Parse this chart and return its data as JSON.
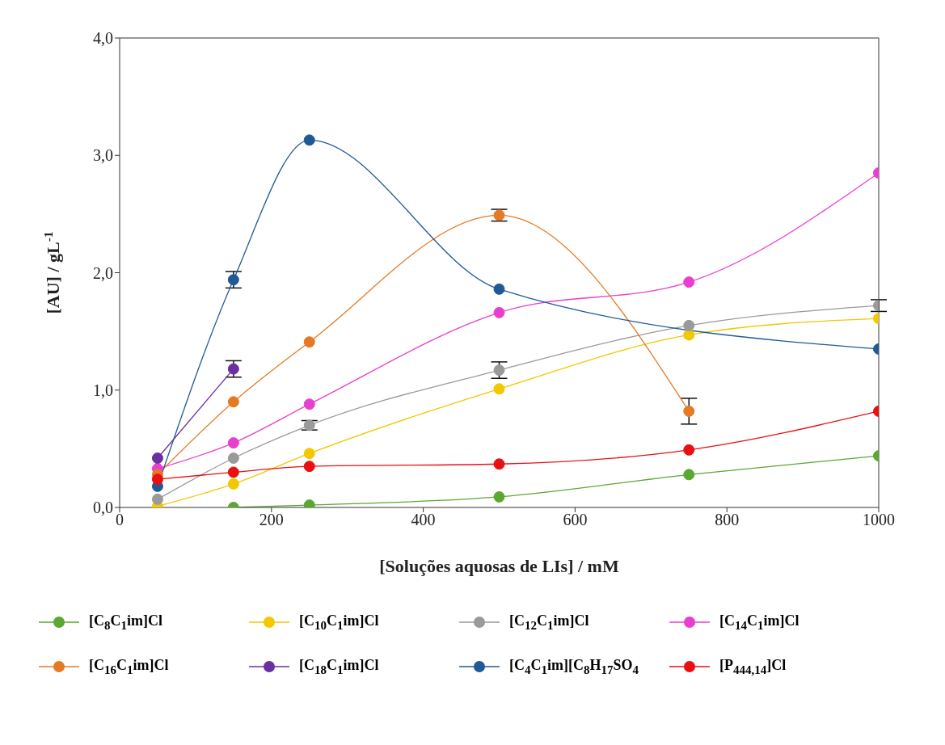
{
  "chart_data": {
    "type": "line",
    "xlabel": "[Soluções aquosas de LIs] / mM",
    "ylabel": "[AU] / gL$^{-1}$",
    "x": [
      50,
      150,
      250,
      500,
      750,
      1000
    ],
    "xlim": [
      0,
      1000
    ],
    "xticks": [
      0,
      200,
      400,
      600,
      800,
      1000
    ],
    "ylim": [
      0,
      4
    ],
    "yticks": [
      {
        "value": 0,
        "label": "0,0"
      },
      {
        "value": 1,
        "label": "1,0"
      },
      {
        "value": 2,
        "label": "2,0"
      },
      {
        "value": 3,
        "label": "3,0"
      },
      {
        "value": 4,
        "label": "4,0"
      }
    ],
    "legend": "bottom",
    "marker": "circle",
    "line_style": "solid",
    "series": [
      {
        "name": "[C$_{8}$C$_{1}$im]Cl",
        "color": "#5aa832",
        "values": [
          null,
          0.0,
          0.02,
          0.09,
          0.28,
          0.44
        ]
      },
      {
        "name": "[C$_{10}$C$_{1}$im]Cl",
        "color": "#f2c800",
        "values": [
          0.01,
          0.2,
          0.46,
          1.01,
          1.47,
          1.61
        ]
      },
      {
        "name": "[C$_{12}$C$_{1}$im]Cl",
        "color": "#9a9a9a",
        "values": [
          0.07,
          0.42,
          0.7,
          1.17,
          1.55,
          1.72
        ],
        "errors": [
          null,
          null,
          0.04,
          0.07,
          null,
          0.05
        ]
      },
      {
        "name": "[C$_{14}$C$_{1}$im]Cl",
        "color": "#e83fd0",
        "values": [
          0.33,
          0.55,
          0.88,
          1.66,
          1.92,
          2.85
        ]
      },
      {
        "name": "[C$_{16}$C$_{1}$im]Cl",
        "color": "#e57a24",
        "values": [
          0.28,
          0.9,
          1.41,
          2.49,
          0.82,
          null
        ],
        "errors": [
          null,
          null,
          null,
          0.05,
          0.11,
          null
        ]
      },
      {
        "name": "[C$_{18}$C$_{1}$im]Cl",
        "color": "#6a2fa0",
        "values": [
          0.42,
          1.18,
          null,
          null,
          null,
          null
        ],
        "errors": [
          null,
          0.07,
          null,
          null,
          null,
          null
        ]
      },
      {
        "name": "[C$_{4}$C$_{1}$im][C$_{8}$H$_{17}$SO$_{4}$",
        "color": "#1f5a96",
        "values": [
          0.18,
          1.94,
          3.13,
          1.86,
          null,
          1.35
        ],
        "errors": [
          null,
          0.07,
          null,
          null,
          null,
          null
        ]
      },
      {
        "name": "[P$_{444,14}$]Cl",
        "color": "#e81010",
        "values": [
          0.24,
          0.3,
          0.35,
          0.37,
          0.49,
          0.82
        ]
      }
    ]
  }
}
